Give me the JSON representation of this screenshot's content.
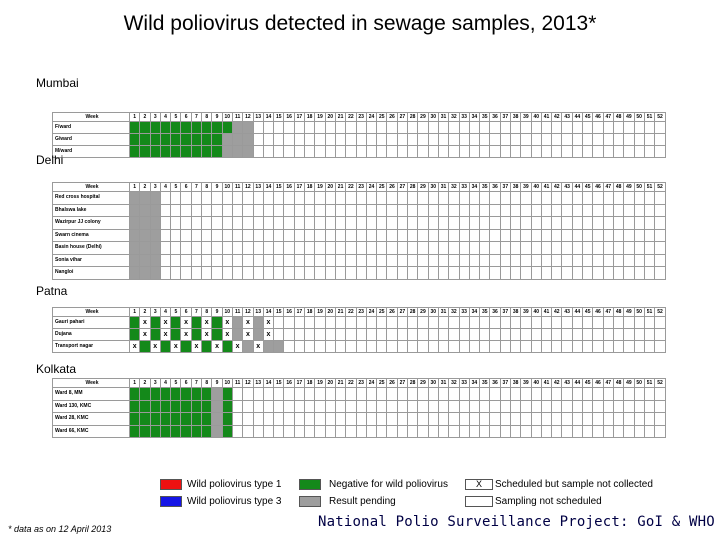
{
  "title": "Wild poliovirus detected in sewage samples, 2013*",
  "footnote": "* data as on 12 April 2013",
  "credit": "National Polio Surveillance Project: GoI & WHO",
  "week_header": "Week",
  "weeks": [
    "1",
    "2",
    "3",
    "4",
    "5",
    "6",
    "7",
    "8",
    "9",
    "10",
    "11",
    "12",
    "13",
    "14",
    "15",
    "16",
    "17",
    "18",
    "19",
    "20",
    "21",
    "22",
    "23",
    "24",
    "25",
    "26",
    "27",
    "28",
    "29",
    "30",
    "31",
    "32",
    "33",
    "34",
    "35",
    "36",
    "37",
    "38",
    "39",
    "40",
    "41",
    "42",
    "43",
    "44",
    "45",
    "46",
    "47",
    "48",
    "49",
    "50",
    "51",
    "52"
  ],
  "legend": [
    {
      "status": "type1",
      "label": "Wild poliovirus type 1",
      "color": "#ee1111"
    },
    {
      "status": "negative",
      "label": "Negative for wild poliovirus",
      "color": "#14891a"
    },
    {
      "status": "x",
      "label": "Scheduled but sample not collected",
      "color": "#ffffff",
      "mark": "X"
    },
    {
      "status": "type3",
      "label": "Wild poliovirus type 3",
      "color": "#1515e6"
    },
    {
      "status": "pending",
      "label": "Result pending",
      "color": "#9e9e9e"
    },
    {
      "status": "none",
      "label": "Sampling not scheduled",
      "color": "#ffffff"
    }
  ],
  "chart_data": {
    "type": "table",
    "status_codes": {
      "G": "Negative for wild poliovirus",
      "P": "Result pending",
      "X": "Scheduled but sample not collected",
      "R": "Wild poliovirus type 1",
      "B": "Wild poliovirus type 3",
      "": "Sampling not scheduled"
    },
    "cities": [
      {
        "name": "Mumbai",
        "sites": [
          {
            "name": "F/ward",
            "weeks": [
              "G",
              "G",
              "G",
              "G",
              "G",
              "G",
              "G",
              "G",
              "G",
              "G",
              "P",
              "P"
            ]
          },
          {
            "name": "G/ward",
            "weeks": [
              "G",
              "G",
              "G",
              "G",
              "G",
              "G",
              "G",
              "G",
              "G",
              "P",
              "P",
              "P"
            ]
          },
          {
            "name": "M/ward",
            "weeks": [
              "G",
              "G",
              "G",
              "G",
              "G",
              "G",
              "G",
              "G",
              "G",
              "P",
              "P",
              "P"
            ]
          }
        ]
      },
      {
        "name": "Delhi",
        "sites": [
          {
            "name": "Red cross hospital",
            "weeks": [
              "P",
              "P",
              "P"
            ]
          },
          {
            "name": "Bhalswa lake",
            "weeks": [
              "P",
              "P",
              "P"
            ]
          },
          {
            "name": "Wazirpur JJ colony",
            "weeks": [
              "P",
              "P",
              "P"
            ]
          },
          {
            "name": "Swarn cinema",
            "weeks": [
              "P",
              "P",
              "P"
            ]
          },
          {
            "name": "Basin house (Delhi)",
            "weeks": [
              "P",
              "P",
              "P"
            ]
          },
          {
            "name": "Sonia vihar",
            "weeks": [
              "P",
              "P",
              "P"
            ]
          },
          {
            "name": "Nangloi",
            "weeks": [
              "P",
              "P",
              "P"
            ]
          }
        ]
      },
      {
        "name": "Patna",
        "sites": [
          {
            "name": "Gauri pahari",
            "weeks": [
              "G",
              "X",
              "G",
              "X",
              "G",
              "X",
              "G",
              "X",
              "G",
              "X",
              "P",
              "X",
              "P",
              "X"
            ]
          },
          {
            "name": "Dujana",
            "weeks": [
              "G",
              "X",
              "G",
              "X",
              "G",
              "X",
              "G",
              "X",
              "G",
              "X",
              "P",
              "X",
              "P",
              "X"
            ]
          },
          {
            "name": "Transport nagar",
            "weeks": [
              "X",
              "G",
              "X",
              "G",
              "X",
              "G",
              "X",
              "G",
              "X",
              "G",
              "X",
              "P",
              "X",
              "P",
              "P"
            ]
          }
        ]
      },
      {
        "name": "Kolkata",
        "sites": [
          {
            "name": "Ward 8, MM",
            "weeks": [
              "G",
              "G",
              "G",
              "G",
              "G",
              "G",
              "G",
              "G",
              "P",
              "G"
            ]
          },
          {
            "name": "Ward 130, KMC",
            "weeks": [
              "G",
              "G",
              "G",
              "G",
              "G",
              "G",
              "G",
              "G",
              "P",
              "G"
            ]
          },
          {
            "name": "Ward 28, KMC",
            "weeks": [
              "G",
              "G",
              "G",
              "G",
              "G",
              "G",
              "G",
              "G",
              "P",
              "G"
            ]
          },
          {
            "name": "Ward 66, KMC",
            "weeks": [
              "G",
              "G",
              "G",
              "G",
              "G",
              "G",
              "G",
              "G",
              "P",
              "G"
            ]
          }
        ]
      }
    ]
  }
}
